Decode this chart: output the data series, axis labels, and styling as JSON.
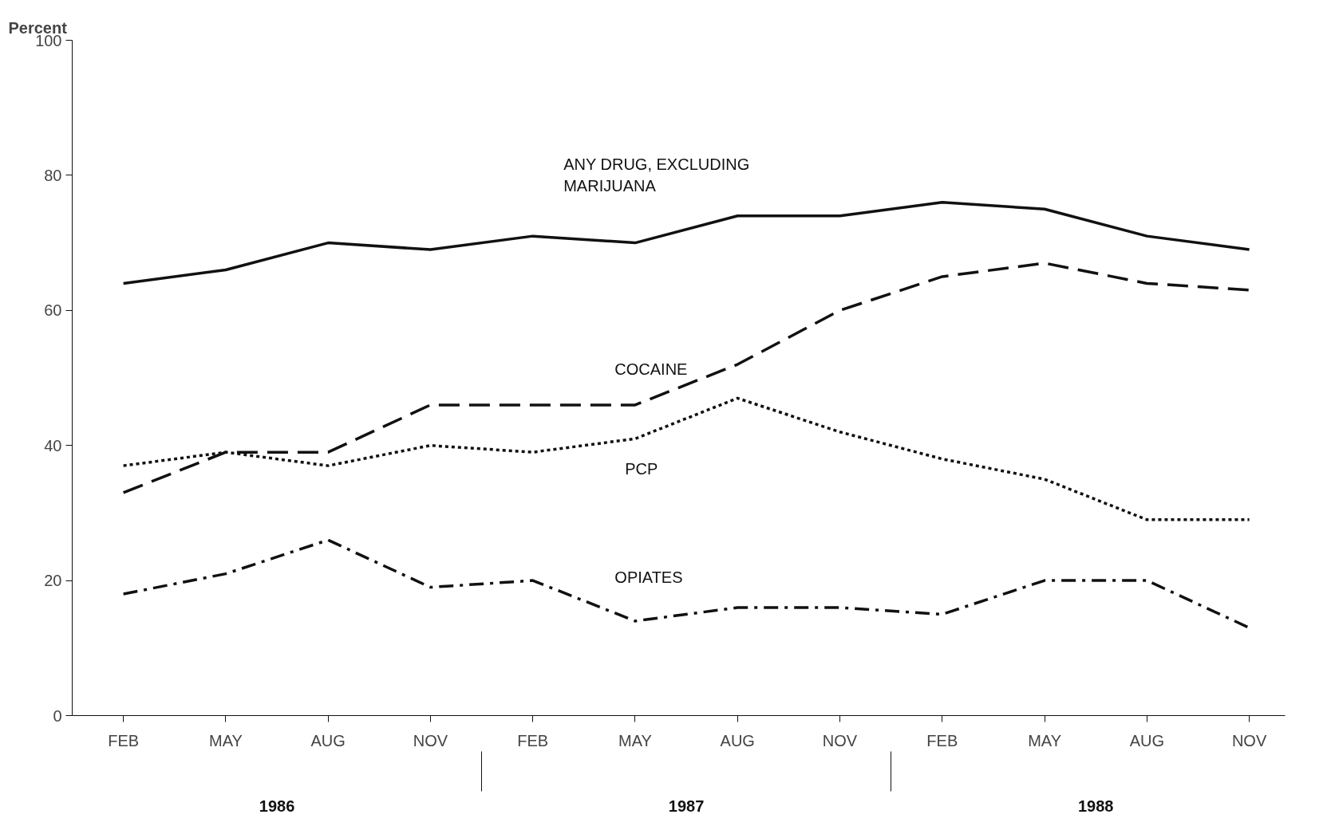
{
  "chart_data": {
    "type": "line",
    "ylabel": "Percent",
    "categories": [
      "FEB",
      "MAY",
      "AUG",
      "NOV",
      "FEB",
      "MAY",
      "AUG",
      "NOV",
      "FEB",
      "MAY",
      "AUG",
      "NOV"
    ],
    "annotations": [
      "1986",
      "1987",
      "1988"
    ],
    "ylim": [
      0,
      100
    ],
    "yticks": [
      0,
      20,
      40,
      60,
      80,
      100
    ],
    "grid": false,
    "marker": "none",
    "series": [
      {
        "name": "ANY DRUG, EXCLUDING\nMARIJUANA",
        "color": "#111111",
        "line_style": "solid",
        "values": [
          64,
          66,
          70,
          69,
          71,
          70,
          74,
          74,
          76,
          75,
          71,
          69
        ]
      },
      {
        "name": "COCAINE",
        "color": "#111111",
        "line_style": "dashed",
        "values": [
          33,
          39,
          39,
          46,
          46,
          46,
          52,
          60,
          65,
          67,
          64,
          63
        ]
      },
      {
        "name": "PCP",
        "color": "#111111",
        "line_style": "dotted",
        "values": [
          37,
          39,
          37,
          40,
          39,
          41,
          47,
          42,
          38,
          35,
          29,
          29
        ]
      },
      {
        "name": "OPIATES",
        "color": "#111111",
        "line_style": "dashdot",
        "values": [
          18,
          21,
          26,
          19,
          20,
          14,
          16,
          16,
          15,
          20,
          20,
          13
        ]
      }
    ]
  }
}
